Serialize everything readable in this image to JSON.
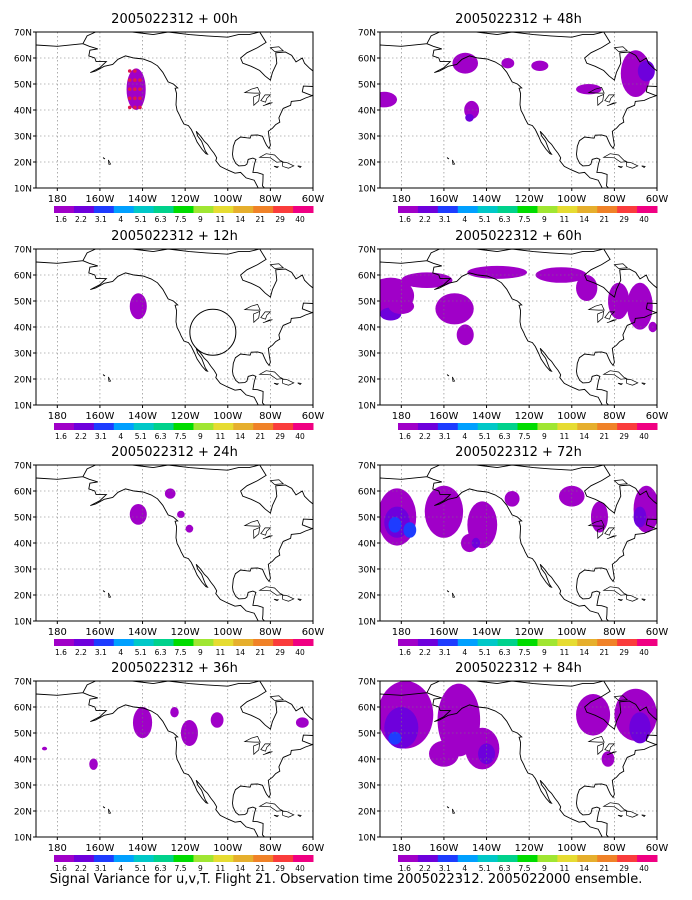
{
  "caption": "Signal Variance for u,v,T. Flight 21. Observation time 2005022312. 2005022000 ensemble.",
  "colorbar": {
    "labels": [
      "1.6",
      "2.2",
      "3.1",
      "4",
      "5.1",
      "6.3",
      "7.5",
      "9",
      "11",
      "14",
      "21",
      "29",
      "40"
    ],
    "colors": [
      "#a000c8",
      "#6e00dc",
      "#1e3cff",
      "#00a0ff",
      "#00c8c8",
      "#00d28c",
      "#00dc00",
      "#a0e632",
      "#e6dc32",
      "#e6af2d",
      "#f08228",
      "#fa3c3c",
      "#f00082"
    ]
  },
  "axes": {
    "x_ticks": [
      "180",
      "160W",
      "140W",
      "120W",
      "100W",
      "80W",
      "60W"
    ],
    "y_ticks": [
      "10N",
      "20N",
      "30N",
      "40N",
      "50N",
      "60N",
      "70N"
    ]
  },
  "panels": [
    {
      "title": "2005022312 + 00h"
    },
    {
      "title": "2005022312 + 12h"
    },
    {
      "title": "2005022312 + 24h"
    },
    {
      "title": "2005022312 + 36h"
    },
    {
      "title": "2005022312 + 48h"
    },
    {
      "title": "2005022312 + 60h"
    },
    {
      "title": "2005022312 + 72h"
    },
    {
      "title": "2005022312 + 84h"
    }
  ]
}
